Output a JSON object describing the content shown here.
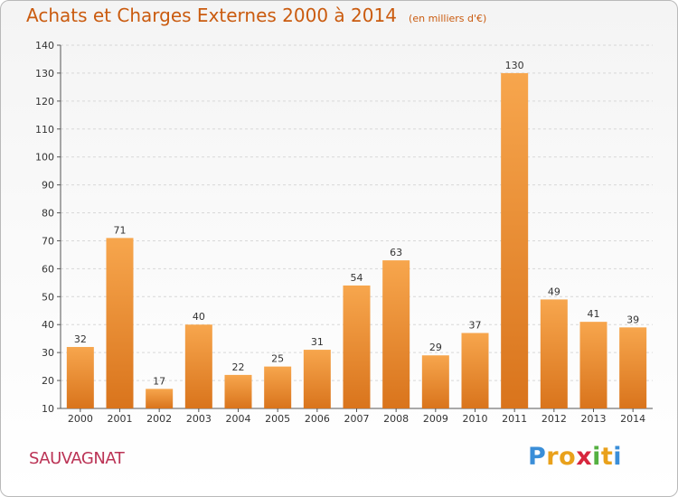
{
  "title": "Achats et Charges Externes 2000 à 2014",
  "unit_note": "(en milliers d'€)",
  "commune": "SAUVAGNAT",
  "logo_text": "Proxiti",
  "colors": {
    "title": "#ca5b0f",
    "commune": "#bb3355",
    "bar_light": "#f7a64d",
    "bar_dark": "#d9741c",
    "grid": "#d8d8d8"
  },
  "chart_data": {
    "type": "bar",
    "title": "Achats et Charges Externes 2000 à 2014",
    "subtitle": "(en milliers d'€)",
    "xlabel": "",
    "ylabel": "",
    "categories": [
      "2000",
      "2001",
      "2002",
      "2003",
      "2004",
      "2005",
      "2006",
      "2007",
      "2008",
      "2009",
      "2010",
      "2011",
      "2012",
      "2013",
      "2014"
    ],
    "values": [
      32,
      71,
      17,
      40,
      22,
      25,
      31,
      54,
      63,
      29,
      37,
      130,
      49,
      41,
      39
    ],
    "ylim": [
      10,
      140
    ],
    "yticks": [
      10,
      20,
      30,
      40,
      50,
      60,
      70,
      80,
      90,
      100,
      110,
      120,
      130,
      140
    ],
    "grid": true,
    "data_labels": true
  }
}
